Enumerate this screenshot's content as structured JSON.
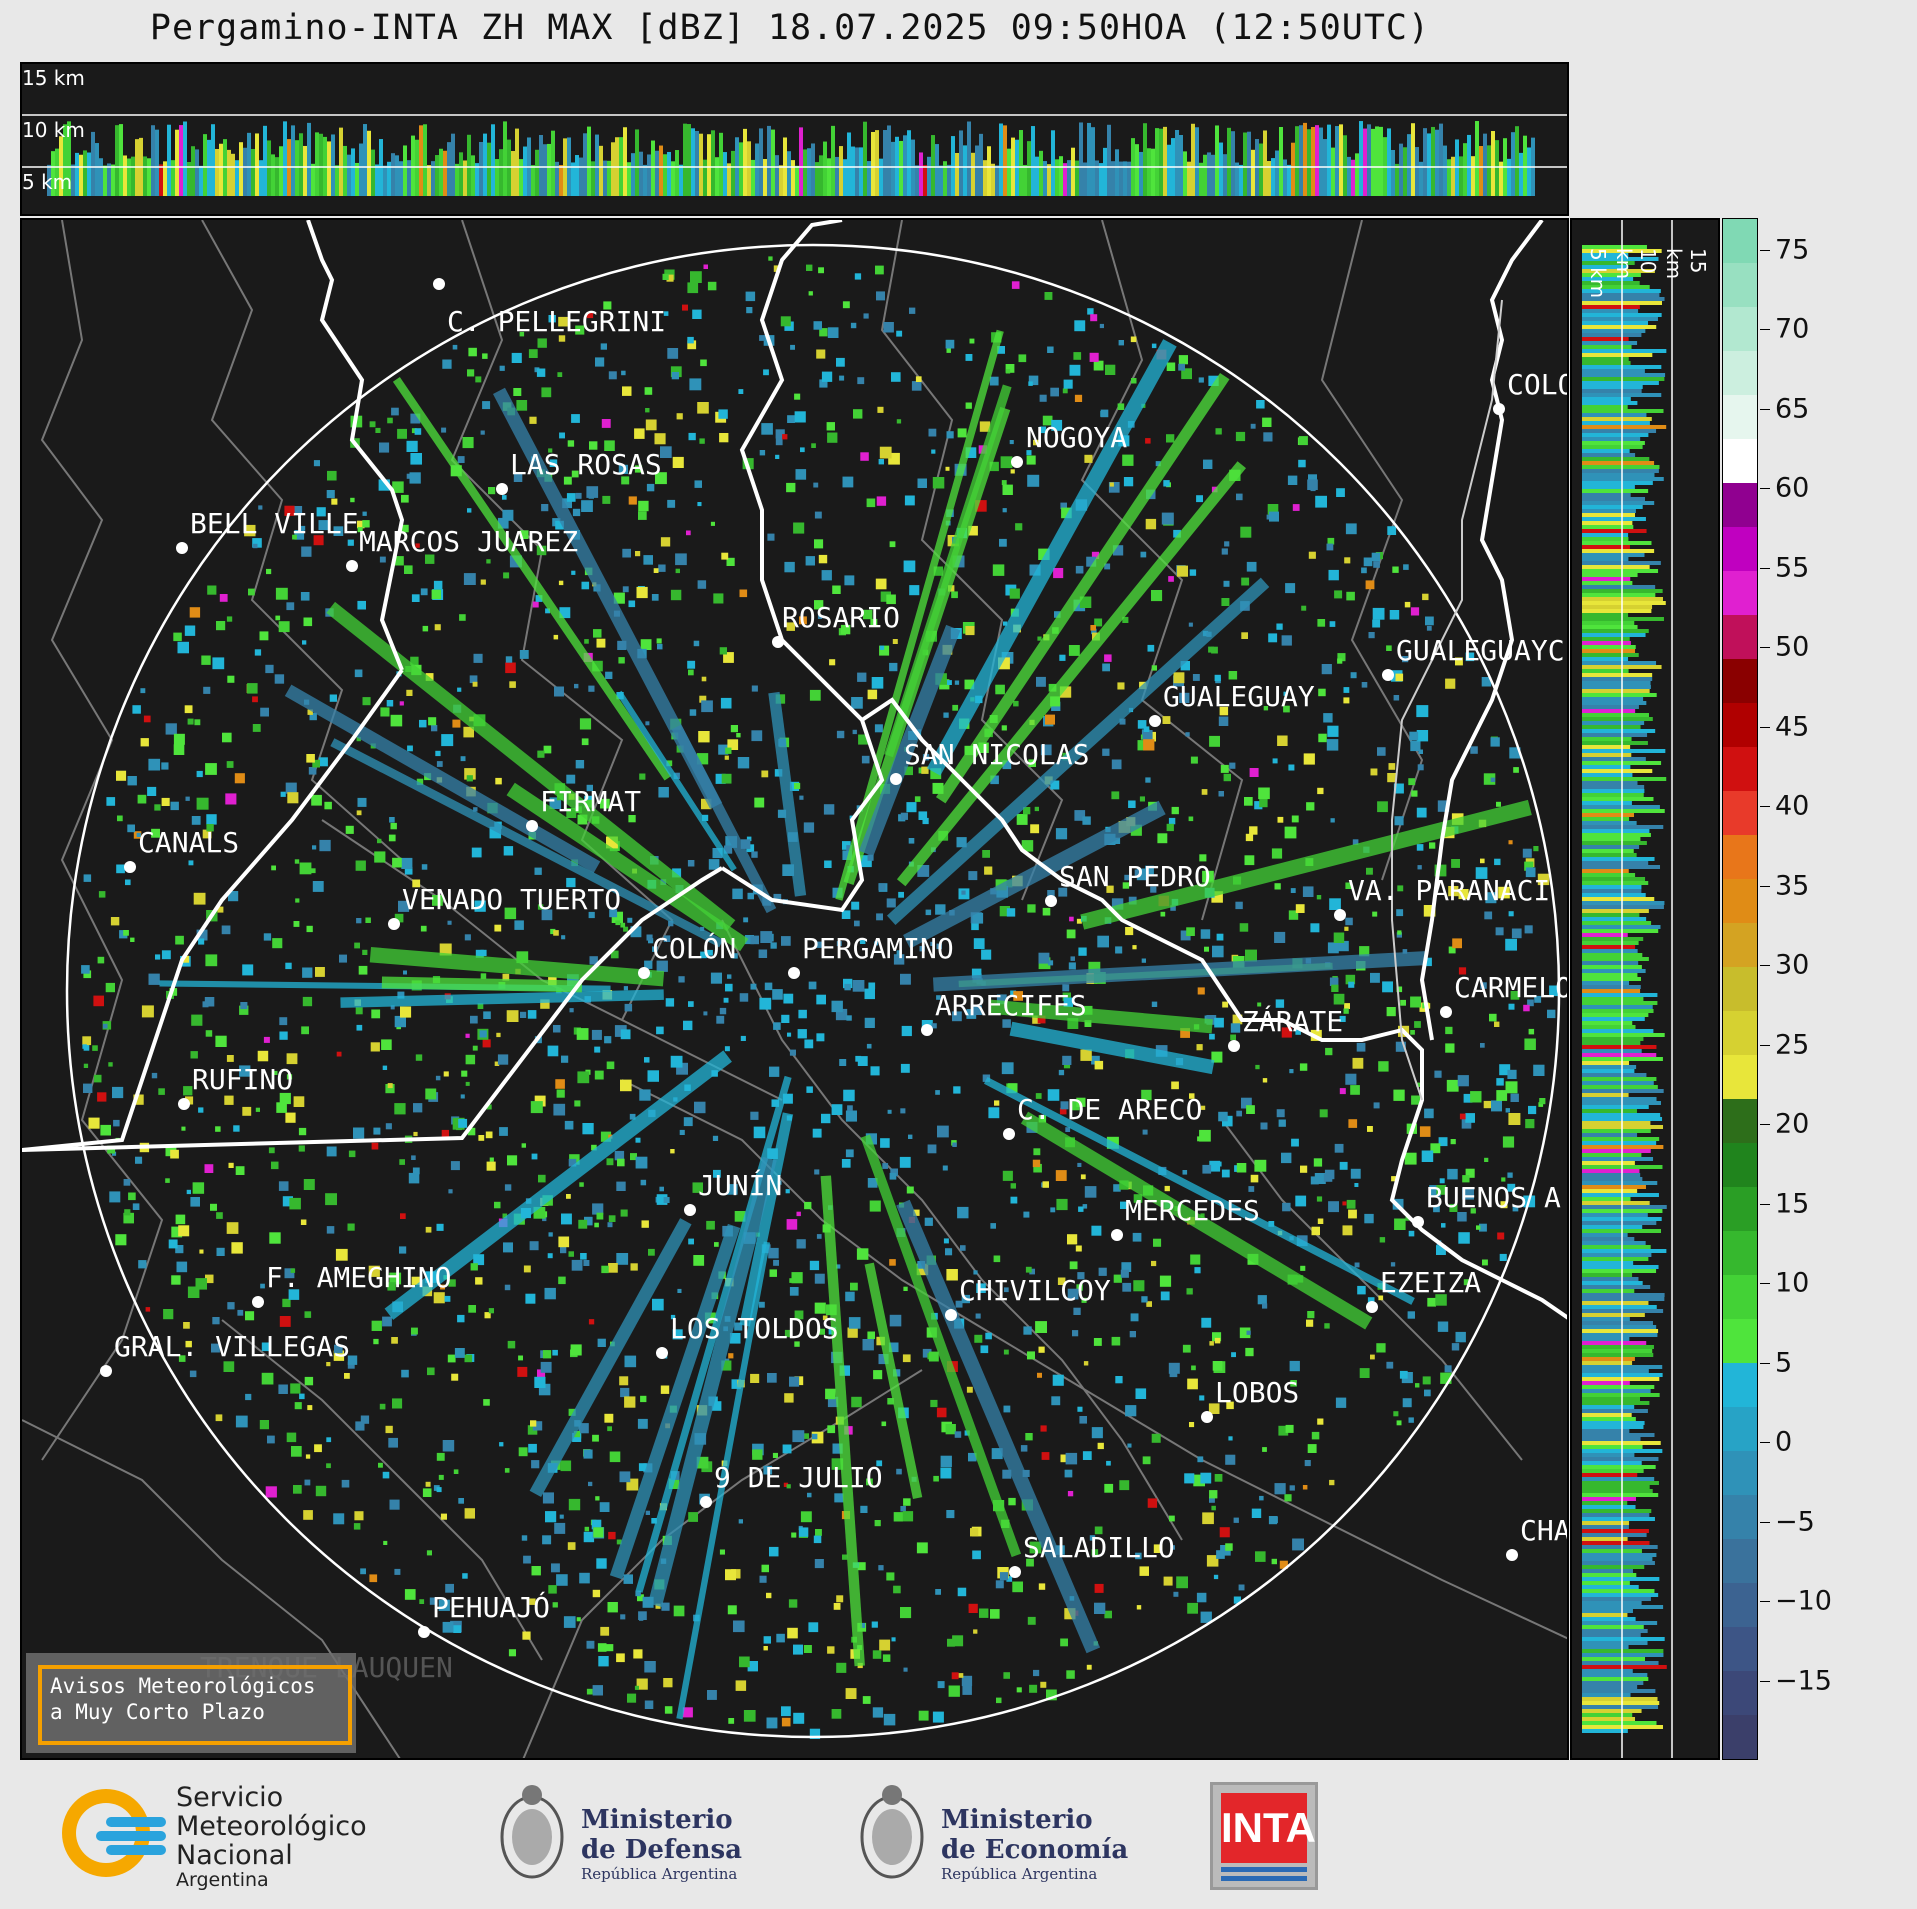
{
  "title": "Pergamino-INTA ZH MAX [dBZ] 18.07.2025 09:50HOA (12:50UTC)",
  "top_panel": {
    "km_labels": [
      "15 km",
      "10 km",
      "5 km"
    ]
  },
  "right_panel": {
    "km_labels": [
      "5 km",
      "10 km",
      "15 km"
    ]
  },
  "colorbar": {
    "ticks": [
      "75",
      "70",
      "65",
      "60",
      "55",
      "50",
      "45",
      "40",
      "35",
      "30",
      "25",
      "20",
      "15",
      "10",
      "5",
      "0",
      "−5",
      "−10",
      "−15"
    ],
    "colors": [
      "#3b3f6a",
      "#3c4878",
      "#3d5586",
      "#3c6391",
      "#3a729c",
      "#3582aa",
      "#2f92b8",
      "#27a3c6",
      "#22b5d8",
      "#4fe43c",
      "#43d236",
      "#36b82e",
      "#2a9e25",
      "#20841d",
      "#2d6e1a",
      "#e8e63a",
      "#d6d131",
      "#c8bd2c",
      "#d4a322",
      "#e08c16",
      "#e8761a",
      "#e83a2a",
      "#d01010",
      "#b00000",
      "#8a0000",
      "#c0105a",
      "#e020d0",
      "#c000c0",
      "#900090",
      "#ffffff",
      "#e6f6ee",
      "#ccefdf",
      "#b2e8d0",
      "#98e0c1",
      "#80d9b4"
    ],
    "range": [
      -20,
      77
    ]
  },
  "cities": [
    {
      "name": "C. PELLEGRINI"
    },
    {
      "name": "LAS ROSAS"
    },
    {
      "name": "BELL VILLE"
    },
    {
      "name": "MARCOS JUAREZ"
    },
    {
      "name": "NOGOYA"
    },
    {
      "name": "COLO"
    },
    {
      "name": "ROSARIO"
    },
    {
      "name": "GUALEGUAYC"
    },
    {
      "name": "GUALEGUAY"
    },
    {
      "name": "SAN NICOLAS"
    },
    {
      "name": "FIRMAT"
    },
    {
      "name": "CANALS"
    },
    {
      "name": "SAN PEDRO"
    },
    {
      "name": "VENADO TUERTO"
    },
    {
      "name": "VA. PARANACI"
    },
    {
      "name": "COLÓN"
    },
    {
      "name": "PERGAMINO"
    },
    {
      "name": "CARMELO"
    },
    {
      "name": "ARRECIFES"
    },
    {
      "name": "ZÁRATE"
    },
    {
      "name": "RUFINO"
    },
    {
      "name": "C. DE ARECO"
    },
    {
      "name": "JUNÍN"
    },
    {
      "name": "BUENOS A"
    },
    {
      "name": "MERCEDES"
    },
    {
      "name": "F. AMEGHINO"
    },
    {
      "name": "EZEIZA"
    },
    {
      "name": "CHIVILCOY"
    },
    {
      "name": "LOS TOLDOS"
    },
    {
      "name": "GRAL. VILLEGAS"
    },
    {
      "name": "LOBOS"
    },
    {
      "name": "9 DE JULIO"
    },
    {
      "name": "SALADILLO"
    },
    {
      "name": "CHA"
    },
    {
      "name": "PEHUAJÓ"
    },
    {
      "name": "TRENQUE LAUQUEN"
    }
  ],
  "warning_box": {
    "line1": "Avisos Meteorológicos",
    "line2": "a Muy Corto Plazo"
  },
  "footer": {
    "smn": [
      "Servicio",
      "Meteorológico",
      "Nacional",
      "Argentina"
    ],
    "defensa": [
      "Ministerio",
      "de Defensa",
      "República Argentina"
    ],
    "economia": [
      "Ministerio",
      "de Economía",
      "República Argentina"
    ],
    "inta": "INTA"
  }
}
